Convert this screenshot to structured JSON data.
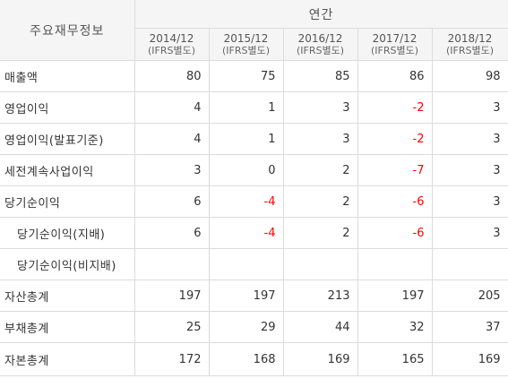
{
  "header": {
    "title": "주요재무정보",
    "period_group": "연간",
    "years": [
      {
        "year": "2014/12",
        "basis": "(IFRS별도)"
      },
      {
        "year": "2015/12",
        "basis": "(IFRS별도)"
      },
      {
        "year": "2016/12",
        "basis": "(IFRS별도)"
      },
      {
        "year": "2017/12",
        "basis": "(IFRS별도)"
      },
      {
        "year": "2018/12",
        "basis": "(IFRS별도)"
      }
    ]
  },
  "rows": [
    {
      "label": "매출액",
      "indent": false,
      "values": [
        "80",
        "75",
        "85",
        "86",
        "98"
      ]
    },
    {
      "label": "영업이익",
      "indent": false,
      "values": [
        "4",
        "1",
        "3",
        "-2",
        "3"
      ]
    },
    {
      "label": "영업이익(발표기준)",
      "indent": false,
      "values": [
        "4",
        "1",
        "3",
        "-2",
        "3"
      ]
    },
    {
      "label": "세전계속사업이익",
      "indent": false,
      "values": [
        "3",
        "0",
        "2",
        "-7",
        "3"
      ]
    },
    {
      "label": "당기순이익",
      "indent": false,
      "values": [
        "6",
        "-4",
        "2",
        "-6",
        "3"
      ]
    },
    {
      "label": "당기순이익(지배)",
      "indent": true,
      "values": [
        "6",
        "-4",
        "2",
        "-6",
        "3"
      ]
    },
    {
      "label": "당기순이익(비지배)",
      "indent": true,
      "values": [
        "",
        "",
        "",
        "",
        ""
      ]
    },
    {
      "label": "자산총계",
      "indent": false,
      "values": [
        "197",
        "197",
        "213",
        "197",
        "205"
      ]
    },
    {
      "label": "부채총계",
      "indent": false,
      "values": [
        "25",
        "29",
        "44",
        "32",
        "37"
      ]
    },
    {
      "label": "자본총계",
      "indent": false,
      "values": [
        "172",
        "168",
        "169",
        "165",
        "169"
      ]
    }
  ],
  "colors": {
    "negative": "#ff0000",
    "header_bg": "#f5f5f5",
    "border": "#dcdcdc"
  }
}
